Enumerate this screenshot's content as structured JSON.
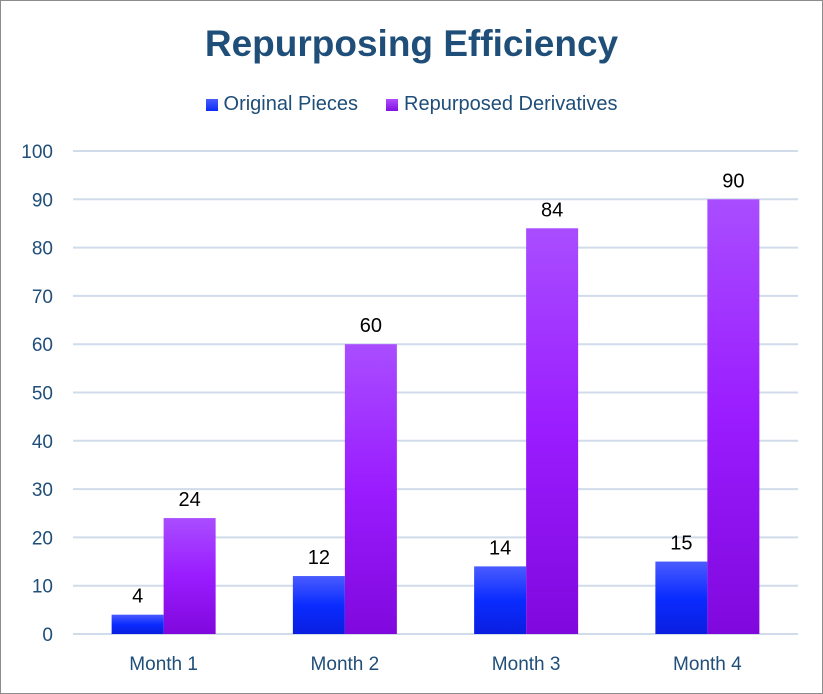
{
  "chart_data": {
    "type": "bar",
    "title": "Repurposing Efficiency",
    "categories": [
      "Month 1",
      "Month 2",
      "Month 3",
      "Month 4"
    ],
    "series": [
      {
        "name": "Original Pieces",
        "values": [
          4,
          12,
          14,
          15
        ],
        "color": "#0a2cf5"
      },
      {
        "name": "Repurposed Derivatives",
        "values": [
          24,
          60,
          84,
          90
        ],
        "color": "#9013f5"
      }
    ],
    "ylim": [
      0,
      100
    ],
    "yticks": [
      0,
      10,
      20,
      30,
      40,
      50,
      60,
      70,
      80,
      90,
      100
    ],
    "grid": true,
    "legend": "top",
    "xlabel": "",
    "ylabel": ""
  }
}
